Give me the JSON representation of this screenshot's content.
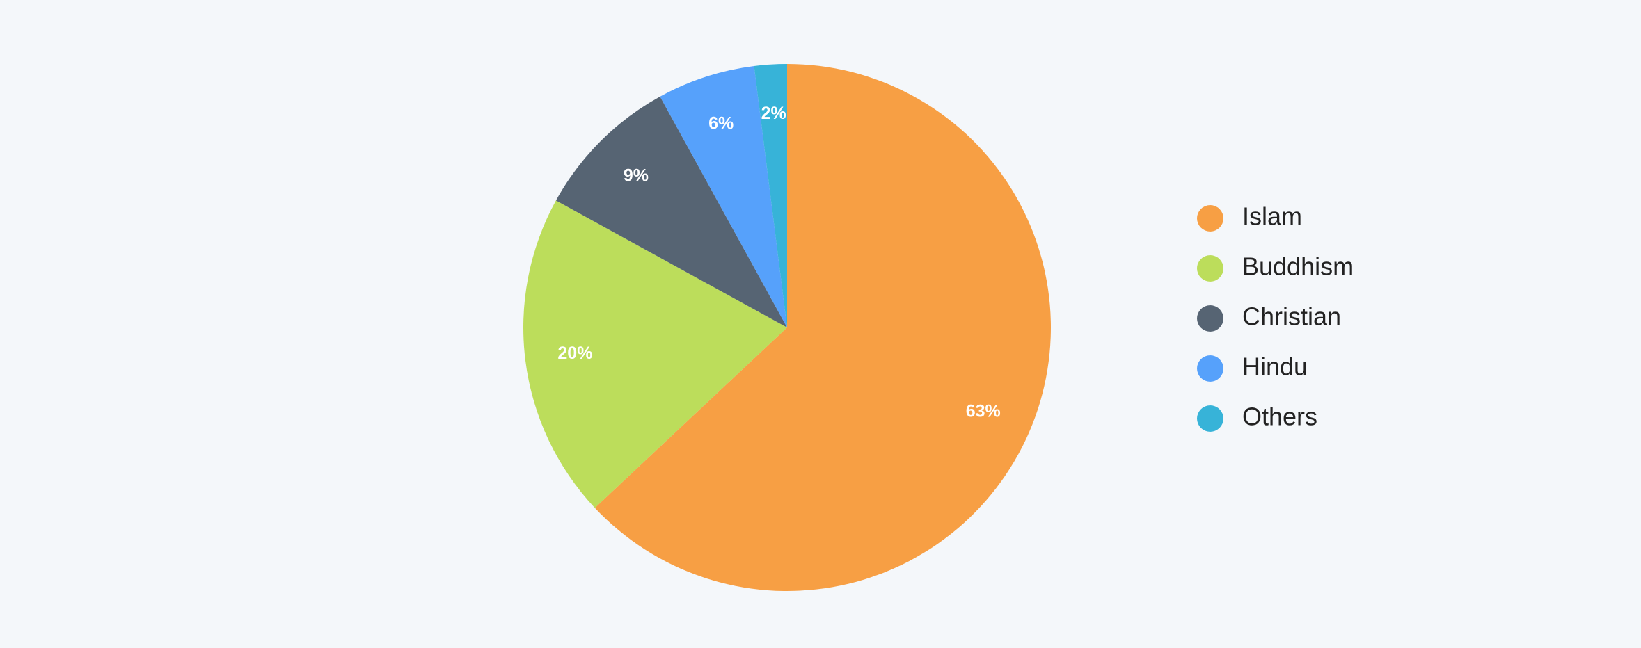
{
  "chart_data": {
    "type": "pie",
    "categories": [
      "Islam",
      "Buddhism",
      "Christian",
      "Hindu",
      "Others"
    ],
    "values": [
      63,
      20,
      9,
      6,
      2
    ],
    "value_labels": [
      "63%",
      "20%",
      "9%",
      "6%",
      "2%"
    ],
    "colors": [
      "#f79f44",
      "#bcdd5b",
      "#566473",
      "#56a1fb",
      "#37b3d8"
    ],
    "legend": "right"
  }
}
